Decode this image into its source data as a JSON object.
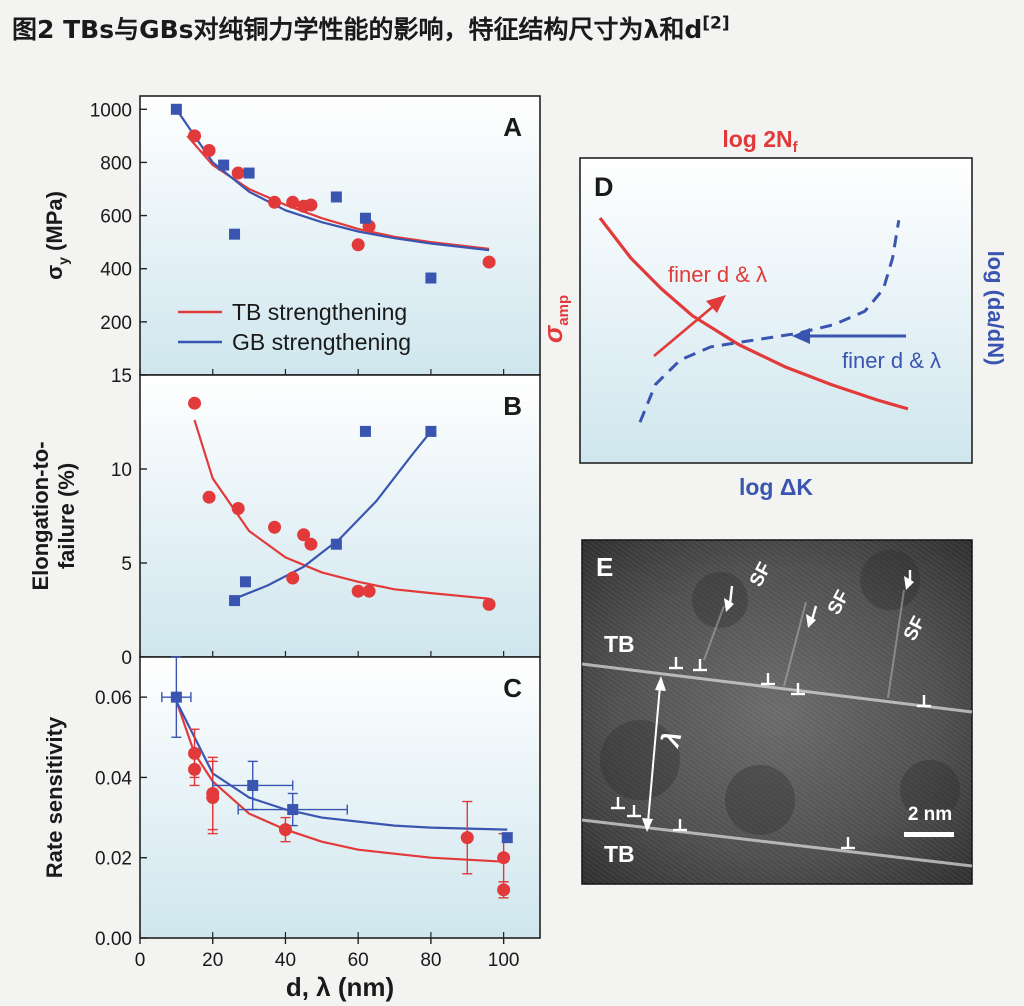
{
  "caption": {
    "text": "图2 TBs与GBs对纯铜力学性能的影响，特征结构尺寸为λ和d",
    "ref": "[2]"
  },
  "colors": {
    "tb": "#e23a3a",
    "gb": "#3a55b0",
    "panel_top": "#ffffff",
    "panel_bottom": "#cfe6ee"
  },
  "chart_data": [
    {
      "panel": "A",
      "type": "scatter",
      "ylabel": "σy (MPa)",
      "xlim": [
        0,
        110
      ],
      "ylim": [
        0,
        1050
      ],
      "yticks": [
        200,
        400,
        600,
        800,
        1000
      ],
      "legend": [
        {
          "name": "TB strengthening",
          "color": "#e23a3a"
        },
        {
          "name": "GB strengthening",
          "color": "#3a55b0"
        }
      ],
      "series": [
        {
          "name": "TB strengthening",
          "marker": "circle",
          "color": "#e23a3a",
          "x": [
            15,
            19,
            27,
            37,
            42,
            45,
            47,
            60,
            63,
            96
          ],
          "y": [
            900,
            845,
            760,
            650,
            650,
            635,
            640,
            490,
            560,
            425
          ],
          "fit": {
            "x": [
              13,
              20,
              30,
              40,
              50,
              60,
              70,
              80,
              96
            ],
            "y": [
              900,
              790,
              700,
              640,
              590,
              550,
              520,
              500,
              475
            ]
          }
        },
        {
          "name": "GB strengthening",
          "marker": "square",
          "color": "#3a55b0",
          "x": [
            10,
            23,
            26,
            30,
            54,
            62,
            80
          ],
          "y": [
            1000,
            790,
            530,
            760,
            670,
            590,
            365
          ],
          "fit": {
            "x": [
              10,
              20,
              30,
              40,
              50,
              60,
              70,
              80,
              96
            ],
            "y": [
              1000,
              800,
              690,
              620,
              575,
              540,
              515,
              495,
              470
            ]
          }
        }
      ]
    },
    {
      "panel": "B",
      "type": "scatter",
      "ylabel": "Elongation-to-failure (%)",
      "xlim": [
        0,
        110
      ],
      "ylim": [
        0,
        15
      ],
      "yticks": [
        0,
        5,
        10,
        15
      ],
      "series": [
        {
          "name": "TB",
          "marker": "circle",
          "color": "#e23a3a",
          "x": [
            15,
            19,
            27,
            37,
            42,
            45,
            47,
            60,
            63,
            96
          ],
          "y": [
            13.5,
            8.5,
            7.9,
            6.9,
            4.2,
            6.5,
            6.0,
            3.5,
            3.5,
            2.8
          ],
          "fit": {
            "x": [
              15,
              20,
              30,
              40,
              50,
              60,
              70,
              80,
              96
            ],
            "y": [
              12.6,
              9.5,
              6.7,
              5.3,
              4.5,
              4.0,
              3.6,
              3.4,
              3.1
            ]
          }
        },
        {
          "name": "GB",
          "marker": "square",
          "color": "#3a55b0",
          "x": [
            26,
            29,
            54,
            62,
            80
          ],
          "y": [
            3.0,
            4.0,
            6.0,
            12.0,
            12.0
          ],
          "fit": {
            "x": [
              26,
              35,
              45,
              55,
              65,
              75,
              80
            ],
            "y": [
              3.1,
              3.8,
              4.8,
              6.3,
              8.3,
              10.8,
              12.0
            ]
          }
        }
      ]
    },
    {
      "panel": "C",
      "type": "scatter",
      "ylabel": "Rate sensitivity",
      "xlabel": "d, λ (nm)",
      "xlim": [
        0,
        110
      ],
      "ylim": [
        0,
        0.07
      ],
      "xticks": [
        0,
        20,
        40,
        60,
        80,
        100
      ],
      "yticks": [
        0.0,
        0.02,
        0.04,
        0.06
      ],
      "series": [
        {
          "name": "TB",
          "marker": "circle",
          "color": "#e23a3a",
          "x": [
            15,
            15,
            20,
            20,
            40,
            90,
            100,
            100
          ],
          "y": [
            0.046,
            0.042,
            0.036,
            0.035,
            0.027,
            0.025,
            0.02,
            0.012
          ],
          "yerr": [
            0.006,
            0.004,
            0.009,
            0.009,
            0.003,
            0.009,
            0.006,
            0.002
          ],
          "fit": {
            "x": [
              10,
              15,
              20,
              30,
              40,
              50,
              60,
              70,
              80,
              100
            ],
            "y": [
              0.059,
              0.046,
              0.039,
              0.031,
              0.027,
              0.024,
              0.022,
              0.021,
              0.02,
              0.019
            ]
          }
        },
        {
          "name": "GB",
          "marker": "square",
          "color": "#3a55b0",
          "x": [
            10,
            31,
            42,
            101
          ],
          "y": [
            0.06,
            0.038,
            0.032,
            0.025
          ],
          "yerr": [
            0.01,
            0.006,
            0.004,
            0.001
          ],
          "xerr": [
            4,
            11,
            15,
            0
          ],
          "fit": {
            "x": [
              10,
              20,
              30,
              40,
              50,
              60,
              70,
              80,
              101
            ],
            "y": [
              0.059,
              0.041,
              0.035,
              0.032,
              0.03,
              0.029,
              0.028,
              0.0275,
              0.027
            ]
          }
        }
      ]
    },
    {
      "panel": "D",
      "type": "line",
      "schematic": true,
      "top_label": "log 2N",
      "top_label_sub": "f",
      "left_label": "σ",
      "left_label_sub": "amp",
      "right_label": "log (da/dN)",
      "bottom_label": "log ΔK",
      "annotations": [
        {
          "text": "finer d & λ",
          "color": "#e23a3a"
        },
        {
          "text": "finer d & λ",
          "color": "#3a55b0"
        }
      ],
      "series": [
        {
          "name": "S-N curve (σamp vs log 2Nf)",
          "style": "solid",
          "color": "#e23a3a",
          "x": [
            0.0,
            0.1,
            0.2,
            0.3,
            0.45,
            0.6,
            0.75,
            0.9,
            1.0
          ],
          "y": [
            1.0,
            0.82,
            0.68,
            0.56,
            0.43,
            0.33,
            0.25,
            0.18,
            0.14
          ]
        },
        {
          "name": "Crack growth (log da/dN vs log ΔK)",
          "style": "dashed",
          "color": "#3a55b0",
          "x": [
            0.13,
            0.18,
            0.26,
            0.36,
            0.5,
            0.64,
            0.76,
            0.86,
            0.92,
            0.95,
            0.97
          ],
          "y": [
            0.08,
            0.25,
            0.36,
            0.42,
            0.45,
            0.48,
            0.52,
            0.58,
            0.68,
            0.82,
            0.99
          ]
        }
      ]
    }
  ],
  "panel_e": {
    "letter": "E",
    "tb_labels": [
      "TB",
      "TB"
    ],
    "sf_labels": [
      "SF",
      "SF",
      "SF"
    ],
    "lambda": "λ",
    "scale_bar": "2 nm"
  }
}
